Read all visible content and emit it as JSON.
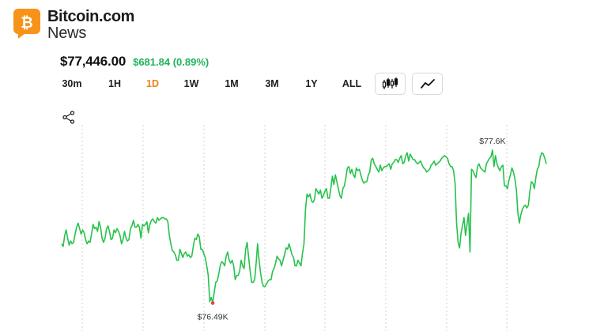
{
  "brand": {
    "name": "Bitcoin.com",
    "sub": "News",
    "badge_letter": "₿",
    "badge_color": "#f7931a"
  },
  "price": {
    "value": "$77,446.00",
    "change": "$681.84 (0.89%)",
    "change_color": "#20b25a"
  },
  "ranges": [
    {
      "label": "30m",
      "active": false
    },
    {
      "label": "1H",
      "active": false
    },
    {
      "label": "1D",
      "active": true
    },
    {
      "label": "1W",
      "active": false
    },
    {
      "label": "1M",
      "active": false
    },
    {
      "label": "3M",
      "active": false
    },
    {
      "label": "1Y",
      "active": false
    },
    {
      "label": "ALL",
      "active": false
    }
  ],
  "chart_type_buttons": [
    {
      "icon": "candlestick-icon"
    },
    {
      "icon": "line-chart-icon"
    }
  ],
  "colors": {
    "accent": "#e8821b",
    "line": "#27c24c",
    "low_marker": "#e04848",
    "grid": "#d2d2d2"
  },
  "chart_data": {
    "type": "line",
    "ylim": [
      76350,
      77760
    ],
    "grid": "vertical dashed",
    "high": {
      "label": "$77.6K",
      "value": 77600
    },
    "low": {
      "label": "$76.49K",
      "value": 76490
    },
    "values": [
      76920,
      76900,
      76980,
      77020,
      76960,
      76910,
      76940,
      76920,
      76930,
      76990,
      77040,
      77070,
      77030,
      76990,
      77020,
      77000,
      76950,
      76920,
      76940,
      76930,
      76990,
      77060,
      77030,
      77040,
      77010,
      77080,
      77040,
      76960,
      76930,
      76960,
      77030,
      77050,
      77010,
      76950,
      76960,
      77020,
      77000,
      77030,
      77010,
      76980,
      76920,
      76950,
      77010,
      76960,
      76940,
      76950,
      77030,
      77050,
      77090,
      77040,
      77040,
      77060,
      77040,
      76960,
      77060,
      77050,
      77060,
      77080,
      77000,
      77060,
      77090,
      77100,
      77080,
      77070,
      77110,
      77090,
      77100,
      77110,
      77110,
      77100,
      77100,
      77080,
      76980,
      76920,
      76870,
      76860,
      76840,
      76800,
      76800,
      76880,
      76850,
      76820,
      76850,
      76860,
      76830,
      76840,
      76820,
      76830,
      76900,
      76960,
      76950,
      76990,
      76970,
      76880,
      76880,
      76850,
      76820,
      76760,
      76690,
      76500,
      76530,
      76490,
      76570,
      76640,
      76650,
      76700,
      76760,
      76790,
      76780,
      76760,
      76830,
      76860,
      76800,
      76780,
      76800,
      76760,
      76660,
      76690,
      76690,
      76720,
      76800,
      76760,
      76740,
      76880,
      76930,
      76820,
      76720,
      76640,
      76640,
      76660,
      76780,
      76920,
      76800,
      76710,
      76640,
      76610,
      76610,
      76630,
      76650,
      76660,
      76660,
      76720,
      76740,
      76780,
      76830,
      76810,
      76800,
      76760,
      76800,
      76840,
      76890,
      76880,
      76920,
      76880,
      76840,
      76820,
      76760,
      76760,
      76800,
      76780,
      76760,
      76850,
      76920,
      77170,
      77280,
      77260,
      77280,
      77230,
      77220,
      77240,
      77320,
      77300,
      77280,
      77310,
      77250,
      77270,
      77300,
      77320,
      77250,
      77250,
      77330,
      77410,
      77350,
      77420,
      77370,
      77320,
      77270,
      77250,
      77320,
      77340,
      77400,
      77470,
      77480,
      77430,
      77460,
      77420,
      77400,
      77470,
      77450,
      77460,
      77420,
      77380,
      77360,
      77370,
      77370,
      77420,
      77440,
      77530,
      77540,
      77500,
      77480,
      77460,
      77440,
      77490,
      77450,
      77470,
      77480,
      77480,
      77490,
      77500,
      77460,
      77500,
      77510,
      77530,
      77530,
      77510,
      77540,
      77560,
      77500,
      77510,
      77560,
      77580,
      77520,
      77570,
      77550,
      77530,
      77530,
      77510,
      77500,
      77510,
      77520,
      77490,
      77470,
      77460,
      77440,
      77450,
      77460,
      77490,
      77500,
      77520,
      77490,
      77500,
      77510,
      77520,
      77540,
      77550,
      77560,
      77550,
      77540,
      77500,
      77480,
      77480,
      77450,
      77360,
      77070,
      76930,
      76890,
      77000,
      77050,
      77110,
      76980,
      77060,
      77140,
      76860,
      77460,
      77450,
      77420,
      77400,
      77480,
      77500,
      77470,
      77460,
      77450,
      77440,
      77500,
      77520,
      77540,
      77550,
      77600,
      77480,
      77560,
      77500,
      77470,
      77450,
      77480,
      77490,
      77340,
      77340,
      77320,
      77380,
      77420,
      77470,
      77440,
      77390,
      77310,
      77140,
      77070,
      77130,
      77170,
      77190,
      77200,
      77180,
      77200,
      77300,
      77370,
      77360,
      77320,
      77400,
      77460,
      77480,
      77550,
      77580,
      77570,
      77540,
      77500
    ]
  }
}
